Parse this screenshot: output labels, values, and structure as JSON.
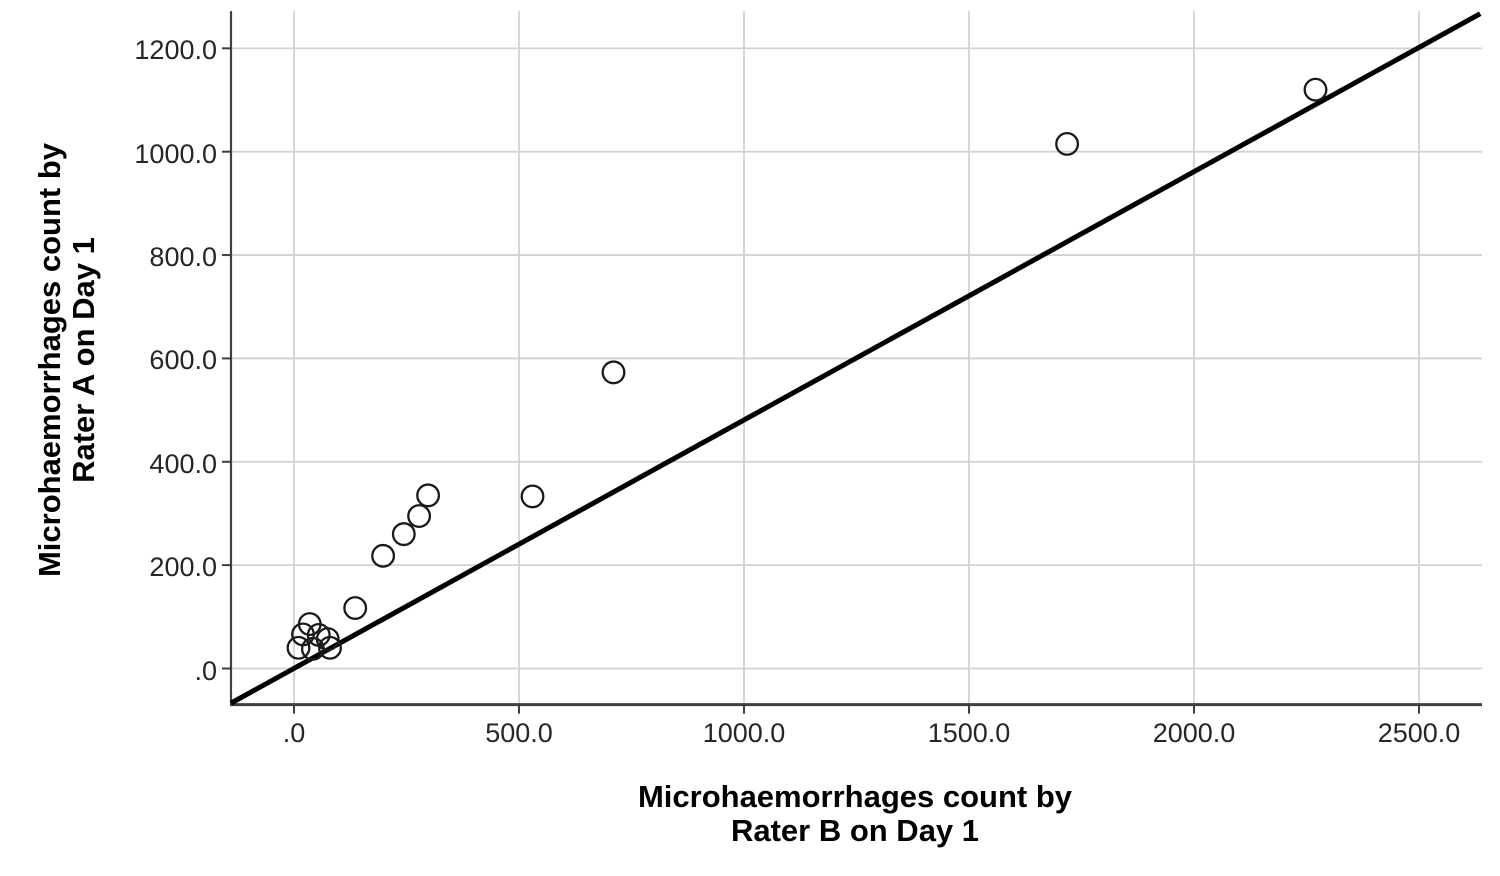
{
  "chart_data": {
    "type": "scatter",
    "title": "",
    "xlabel_lines": [
      "Microhaemorrhages count by",
      "Rater B on Day 1"
    ],
    "ylabel_lines": [
      "Microhaemorrhages count by",
      "Rater A on Day 1"
    ],
    "x_ticks": {
      "values": [
        0,
        500,
        1000,
        1500,
        2000,
        2500
      ],
      "labels": [
        ".0",
        "500.0",
        "1000.0",
        "1500.0",
        "2000.0",
        "2500.0"
      ]
    },
    "y_ticks": {
      "values": [
        0,
        200,
        400,
        600,
        800,
        1000,
        1200
      ],
      "labels": [
        ".0",
        "200.0",
        "400.0",
        "600.0",
        "800.0",
        "1000.0",
        "1200.0"
      ]
    },
    "xlim": [
      -140,
      2640
    ],
    "ylim": [
      -70,
      1272
    ],
    "grid": true,
    "legend": "none",
    "points": [
      {
        "x": 10,
        "y": 40
      },
      {
        "x": 20,
        "y": 66
      },
      {
        "x": 35,
        "y": 86
      },
      {
        "x": 42,
        "y": 38
      },
      {
        "x": 55,
        "y": 65
      },
      {
        "x": 75,
        "y": 57
      },
      {
        "x": 80,
        "y": 40
      },
      {
        "x": 136,
        "y": 117
      },
      {
        "x": 198,
        "y": 218
      },
      {
        "x": 244,
        "y": 260
      },
      {
        "x": 278,
        "y": 295
      },
      {
        "x": 298,
        "y": 335
      },
      {
        "x": 530,
        "y": 333
      },
      {
        "x": 710,
        "y": 573
      },
      {
        "x": 1718,
        "y": 1015
      },
      {
        "x": 2270,
        "y": 1120
      }
    ],
    "reference_line": {
      "description": "straight fit line through origin, slope ~0.48",
      "x1": -140,
      "y1": -67,
      "x2": 2636,
      "y2": 1267
    },
    "colors": {
      "background": "#ffffff",
      "marker_stroke": "#1a1a1a",
      "line": "#000000",
      "grid": "#d2d2d2",
      "axis": "#3f3f3f",
      "tick_text": "#262626",
      "title_text": "#000000"
    }
  }
}
